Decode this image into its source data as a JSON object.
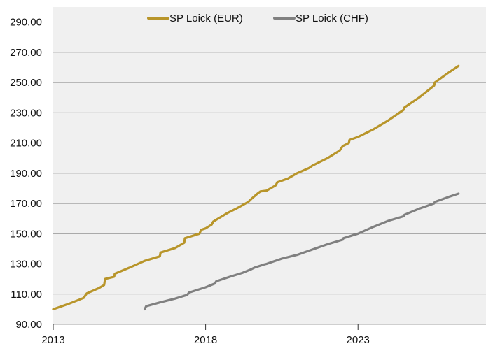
{
  "chart_data": {
    "type": "line",
    "title": "",
    "xlabel": "",
    "ylabel": "",
    "xlim": [
      2013.0,
      2027.2
    ],
    "ylim": [
      90,
      300
    ],
    "y_ticks": [
      "90.00",
      "110.00",
      "130.00",
      "150.00",
      "170.00",
      "190.00",
      "210.00",
      "230.00",
      "250.00",
      "270.00",
      "290.00"
    ],
    "y_tick_values": [
      90,
      110,
      130,
      150,
      170,
      190,
      210,
      230,
      250,
      270,
      290
    ],
    "x_ticks": [
      "2013",
      "2018",
      "2023"
    ],
    "x_tick_values": [
      2013,
      2018,
      2023
    ],
    "grid": "horizontal",
    "legend_position": "top",
    "series": [
      {
        "name": "SP Loick (EUR)",
        "color": "#b8952a",
        "x": [
          2013.0,
          2013.5,
          2014.0,
          2014.1,
          2014.5,
          2014.67,
          2014.7,
          2015.0,
          2015.02,
          2015.5,
          2016.0,
          2016.5,
          2016.52,
          2017.0,
          2017.3,
          2017.32,
          2017.8,
          2017.85,
          2018.0,
          2018.2,
          2018.25,
          2018.7,
          2019.0,
          2019.4,
          2019.5,
          2019.7,
          2019.8,
          2020.0,
          2020.3,
          2020.35,
          2020.7,
          2021.0,
          2021.4,
          2021.5,
          2022.0,
          2022.4,
          2022.5,
          2022.7,
          2022.72,
          2023.0,
          2023.5,
          2024.0,
          2024.5,
          2024.52,
          2025.0,
          2025.5,
          2025.52,
          2026.0,
          2026.3
        ],
        "y": [
          100,
          103.5,
          107.5,
          110.5,
          114,
          116,
          120,
          121.5,
          123.5,
          127.5,
          132,
          135,
          137.5,
          140.5,
          144,
          147,
          150,
          152.5,
          153.5,
          156,
          158,
          163.5,
          166.5,
          171,
          173,
          176.5,
          178,
          178.5,
          182,
          184,
          186.5,
          190,
          193.5,
          195,
          200,
          205,
          208,
          210,
          212,
          214,
          219,
          225,
          232,
          233.5,
          240,
          248,
          250,
          257,
          261
        ]
      },
      {
        "name": "SP Loick (CHF)",
        "color": "#808080",
        "x": [
          2016.0,
          2016.05,
          2016.5,
          2017.0,
          2017.4,
          2017.45,
          2018.0,
          2018.3,
          2018.35,
          2018.8,
          2019.2,
          2019.5,
          2019.6,
          2019.9,
          2020.0,
          2020.5,
          2021.0,
          2021.5,
          2022.0,
          2022.5,
          2022.52,
          2023.0,
          2023.5,
          2024.0,
          2024.5,
          2024.52,
          2025.0,
          2025.5,
          2025.52,
          2026.0,
          2026.3
        ],
        "y": [
          100,
          102,
          104.5,
          107,
          109.5,
          111,
          114.5,
          117,
          118.5,
          121.5,
          124,
          126.5,
          127.5,
          129.5,
          130,
          133.5,
          136,
          139.5,
          143,
          146,
          147,
          150,
          154.5,
          158.5,
          161.5,
          162.5,
          166.5,
          170,
          171,
          174.5,
          176.5
        ]
      }
    ]
  }
}
